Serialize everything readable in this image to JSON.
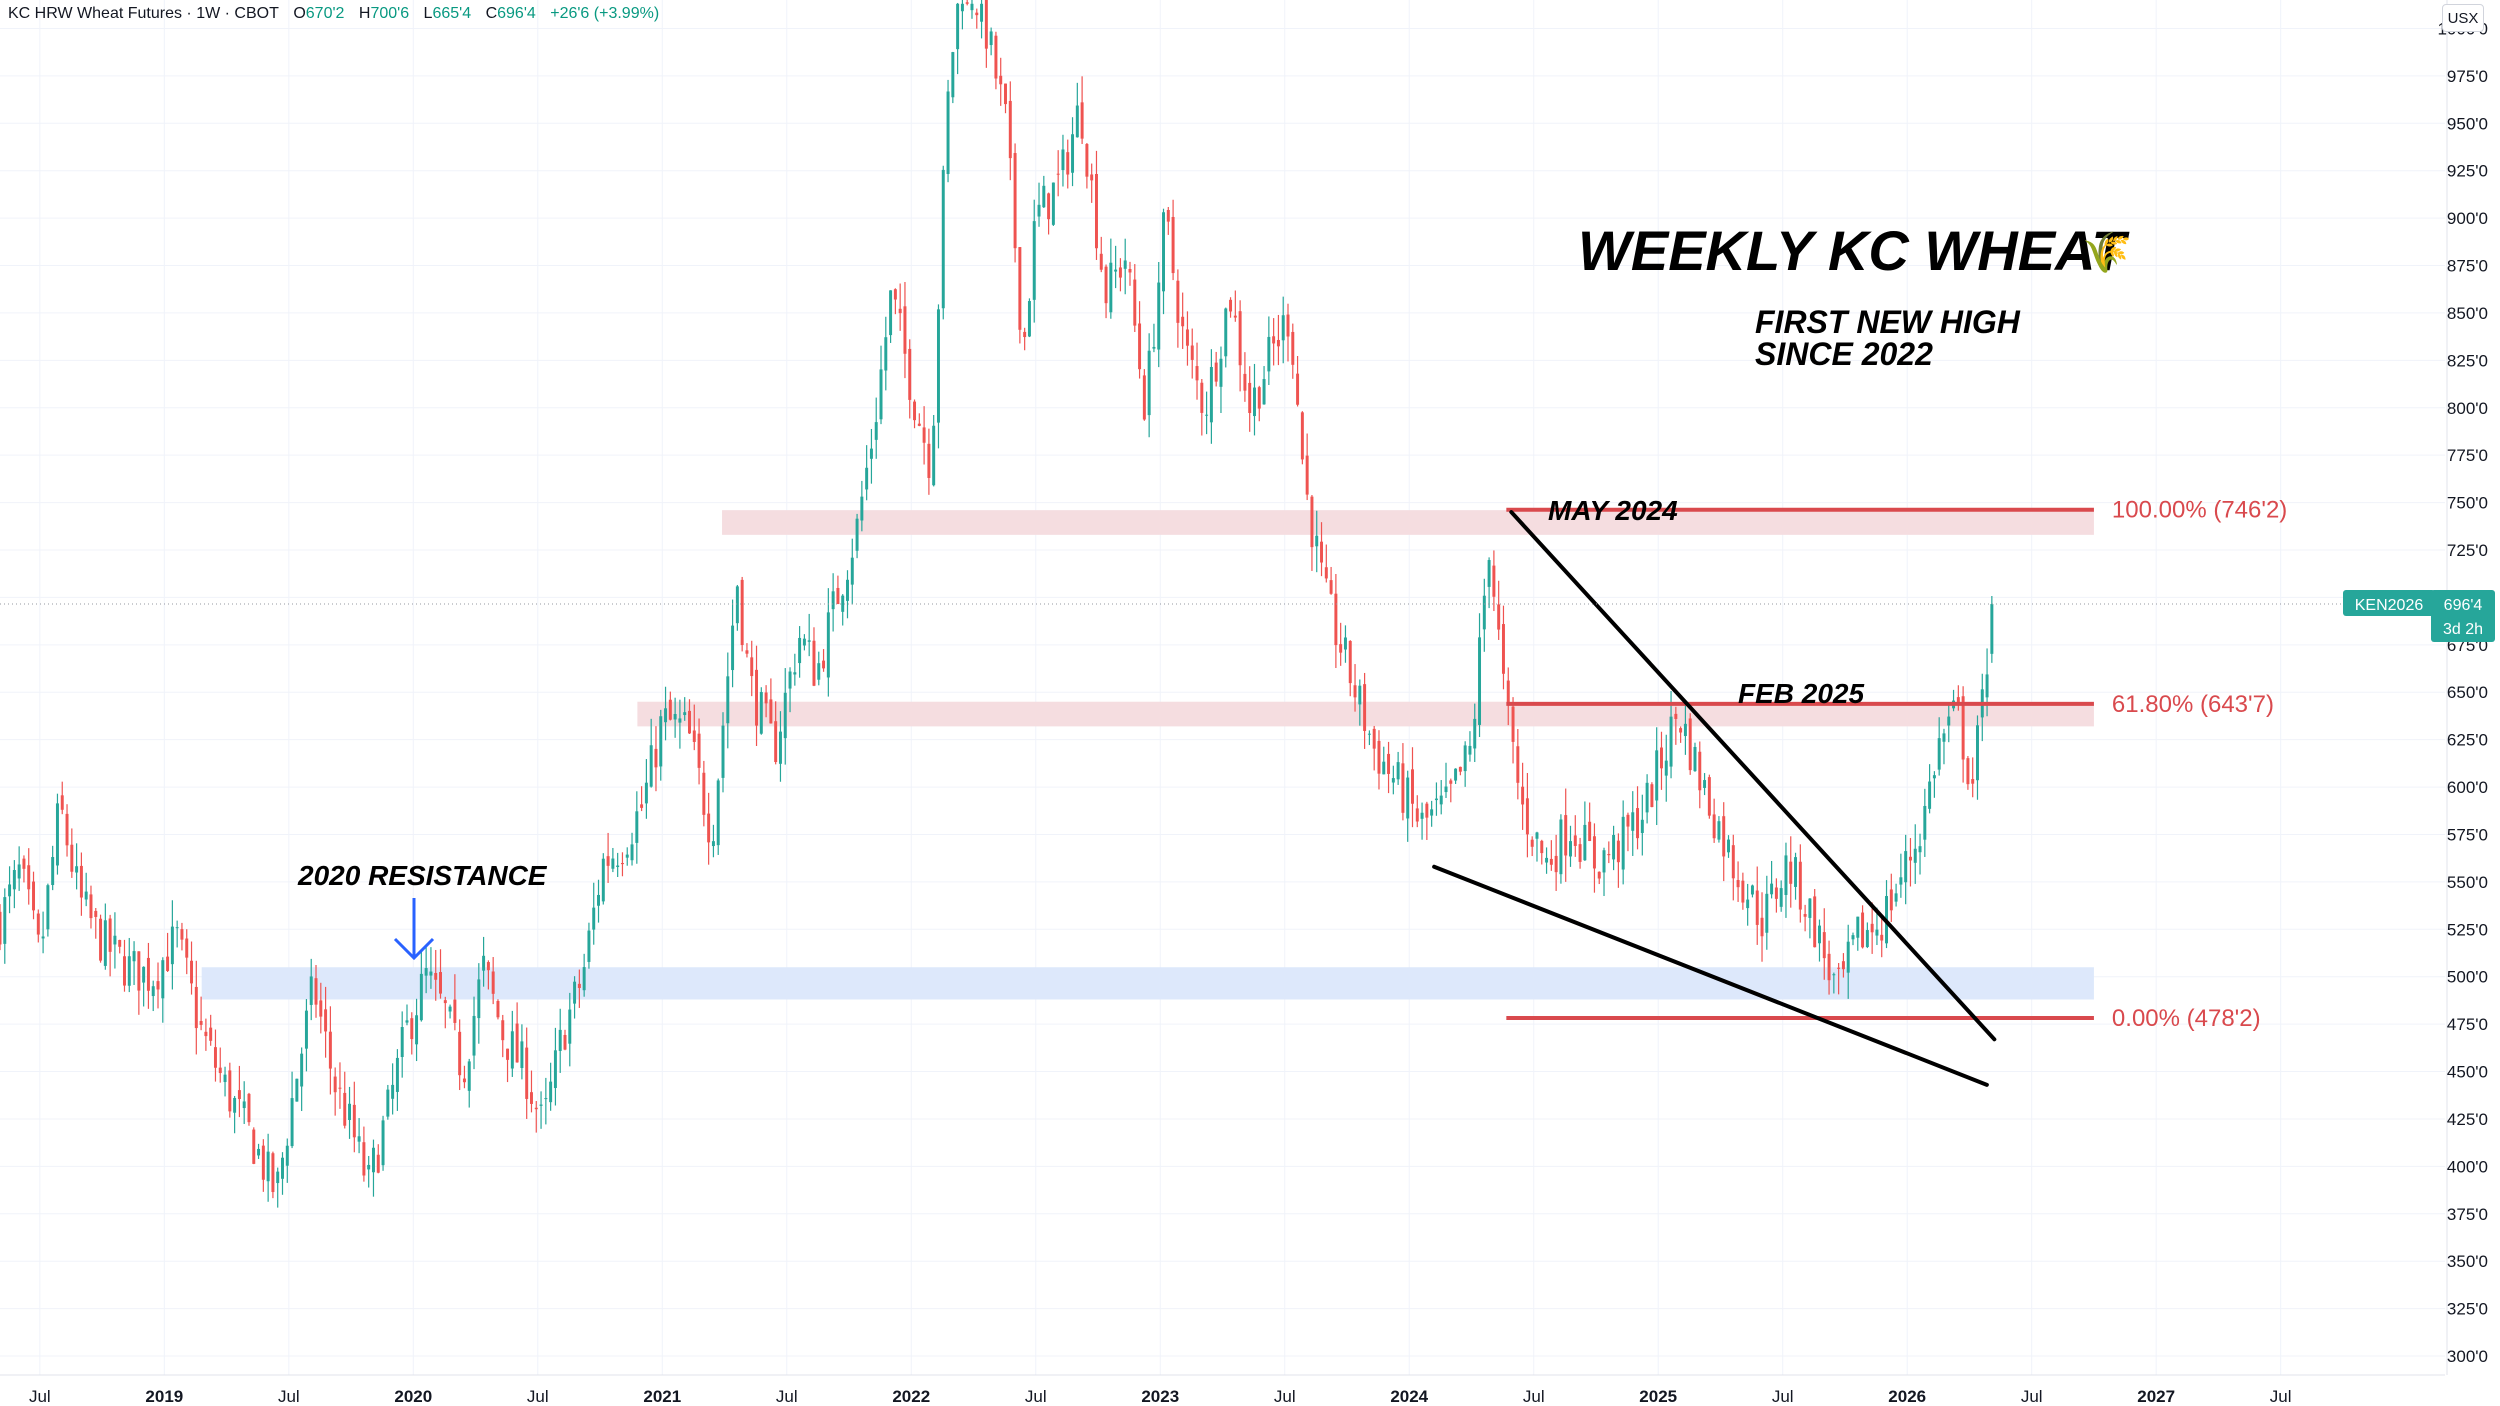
{
  "header": {
    "symbol": "KC HRW Wheat Futures · 1W · CBOT",
    "open_label": "O",
    "open": "670'2",
    "high_label": "H",
    "high": "700'6",
    "low_label": "L",
    "low": "665'4",
    "close_label": "C",
    "close": "696'4",
    "change": "+26'6 (+3.99%)"
  },
  "currency_button": "USX",
  "price_tag": {
    "ticker": "KEN2026",
    "price": "696'4",
    "countdown": "3d 2h"
  },
  "colors": {
    "up": "#26a69a",
    "down": "#ef5350",
    "fib": "#d9494d",
    "zone_red": "#f5dde0",
    "zone_blue": "#dde8fb",
    "arrow": "#2962ff",
    "axis_text": "#131722",
    "grid": "#f0f3fa"
  },
  "chart_data": {
    "type": "candlestick",
    "timeframe": "1W",
    "ylim": [
      290,
      1015
    ],
    "y_ticks": [
      {
        "v": 300,
        "label": "300'0"
      },
      {
        "v": 325,
        "label": "325'0"
      },
      {
        "v": 350,
        "label": "350'0"
      },
      {
        "v": 375,
        "label": "375'0"
      },
      {
        "v": 400,
        "label": "400'0"
      },
      {
        "v": 425,
        "label": "425'0"
      },
      {
        "v": 450,
        "label": "450'0"
      },
      {
        "v": 475,
        "label": "475'0"
      },
      {
        "v": 500,
        "label": "500'0"
      },
      {
        "v": 525,
        "label": "525'0"
      },
      {
        "v": 550,
        "label": "550'0"
      },
      {
        "v": 575,
        "label": "575'0"
      },
      {
        "v": 600,
        "label": "600'0"
      },
      {
        "v": 625,
        "label": "625'0"
      },
      {
        "v": 650,
        "label": "650'0"
      },
      {
        "v": 675,
        "label": "675'0"
      },
      {
        "v": 700,
        "label": "700'0"
      },
      {
        "v": 725,
        "label": "725'0"
      },
      {
        "v": 750,
        "label": "750'0"
      },
      {
        "v": 775,
        "label": "775'0"
      },
      {
        "v": 800,
        "label": "800'0"
      },
      {
        "v": 825,
        "label": "825'0"
      },
      {
        "v": 850,
        "label": "850'0"
      },
      {
        "v": 875,
        "label": "875'0"
      },
      {
        "v": 900,
        "label": "900'0"
      },
      {
        "v": 925,
        "label": "925'0"
      },
      {
        "v": 950,
        "label": "950'0"
      },
      {
        "v": 975,
        "label": "975'0"
      },
      {
        "v": 1000,
        "label": "1000'0"
      }
    ],
    "x_ticks": [
      {
        "t": 2018.5,
        "label": "Jul",
        "bold": false
      },
      {
        "t": 2019,
        "label": "2019",
        "bold": true
      },
      {
        "t": 2019.5,
        "label": "Jul",
        "bold": false
      },
      {
        "t": 2020,
        "label": "2020",
        "bold": true
      },
      {
        "t": 2020.5,
        "label": "Jul",
        "bold": false
      },
      {
        "t": 2021,
        "label": "2021",
        "bold": true
      },
      {
        "t": 2021.5,
        "label": "Jul",
        "bold": false
      },
      {
        "t": 2022,
        "label": "2022",
        "bold": true
      },
      {
        "t": 2022.5,
        "label": "Jul",
        "bold": false
      },
      {
        "t": 2023,
        "label": "2023",
        "bold": true
      },
      {
        "t": 2023.5,
        "label": "Jul",
        "bold": false
      },
      {
        "t": 2024,
        "label": "2024",
        "bold": true
      },
      {
        "t": 2024.5,
        "label": "Jul",
        "bold": false
      },
      {
        "t": 2025,
        "label": "2025",
        "bold": true
      },
      {
        "t": 2025.5,
        "label": "Jul",
        "bold": false
      },
      {
        "t": 2026,
        "label": "2026",
        "bold": true
      },
      {
        "t": 2026.5,
        "label": "Jul",
        "bold": false
      },
      {
        "t": 2027,
        "label": "2027",
        "bold": true
      },
      {
        "t": 2027.5,
        "label": "Jul",
        "bold": false
      }
    ],
    "x_range": [
      2018.34,
      2028.16
    ],
    "price_path": [
      [
        2018.34,
        530
      ],
      [
        2018.42,
        555
      ],
      [
        2018.5,
        510
      ],
      [
        2018.58,
        590
      ],
      [
        2018.66,
        540
      ],
      [
        2018.74,
        520
      ],
      [
        2018.85,
        505
      ],
      [
        2018.95,
        500
      ],
      [
        2019.05,
        520
      ],
      [
        2019.15,
        470
      ],
      [
        2019.25,
        440
      ],
      [
        2019.35,
        415
      ],
      [
        2019.45,
        385
      ],
      [
        2019.52,
        440
      ],
      [
        2019.6,
        495
      ],
      [
        2019.68,
        445
      ],
      [
        2019.75,
        420
      ],
      [
        2019.82,
        390
      ],
      [
        2019.9,
        430
      ],
      [
        2019.97,
        470
      ],
      [
        2020.05,
        500
      ],
      [
        2020.13,
        480
      ],
      [
        2020.2,
        450
      ],
      [
        2020.28,
        505
      ],
      [
        2020.36,
        470
      ],
      [
        2020.45,
        450
      ],
      [
        2020.52,
        420
      ],
      [
        2020.6,
        470
      ],
      [
        2020.68,
        500
      ],
      [
        2020.76,
        560
      ],
      [
        2020.84,
        570
      ],
      [
        2020.92,
        590
      ],
      [
        2021.0,
        635
      ],
      [
        2021.1,
        630
      ],
      [
        2021.2,
        575
      ],
      [
        2021.3,
        710
      ],
      [
        2021.35,
        655
      ],
      [
        2021.45,
        620
      ],
      [
        2021.55,
        680
      ],
      [
        2021.62,
        660
      ],
      [
        2021.7,
        700
      ],
      [
        2021.78,
        735
      ],
      [
        2021.85,
        790
      ],
      [
        2021.92,
        860
      ],
      [
        2022.02,
        800
      ],
      [
        2022.08,
        770
      ],
      [
        2022.14,
        950
      ],
      [
        2022.2,
        1040
      ],
      [
        2022.3,
        1000
      ],
      [
        2022.38,
        950
      ],
      [
        2022.45,
        830
      ],
      [
        2022.5,
        900
      ],
      [
        2022.6,
        920
      ],
      [
        2022.68,
        960
      ],
      [
        2022.78,
        860
      ],
      [
        2022.86,
        880
      ],
      [
        2022.94,
        800
      ],
      [
        2023.02,
        900
      ],
      [
        2023.1,
        830
      ],
      [
        2023.18,
        800
      ],
      [
        2023.28,
        860
      ],
      [
        2023.36,
        800
      ],
      [
        2023.45,
        830
      ],
      [
        2023.52,
        850
      ],
      [
        2023.58,
        760
      ],
      [
        2023.66,
        700
      ],
      [
        2023.76,
        660
      ],
      [
        2023.86,
        620
      ],
      [
        2023.96,
        600
      ],
      [
        2024.05,
        580
      ],
      [
        2024.15,
        590
      ],
      [
        2024.25,
        620
      ],
      [
        2024.32,
        730
      ],
      [
        2024.38,
        650
      ],
      [
        2024.45,
        590
      ],
      [
        2024.55,
        560
      ],
      [
        2024.65,
        580
      ],
      [
        2024.75,
        560
      ],
      [
        2024.85,
        570
      ],
      [
        2024.95,
        590
      ],
      [
        2025.08,
        640
      ],
      [
        2025.18,
        600
      ],
      [
        2025.3,
        560
      ],
      [
        2025.42,
        530
      ],
      [
        2025.52,
        560
      ],
      [
        2025.62,
        530
      ],
      [
        2025.72,
        490
      ],
      [
        2025.8,
        520
      ],
      [
        2025.9,
        530
      ],
      [
        2026.0,
        560
      ],
      [
        2026.06,
        580
      ],
      [
        2026.12,
        620
      ],
      [
        2026.2,
        640
      ],
      [
        2026.26,
        600
      ],
      [
        2026.3,
        640
      ],
      [
        2026.34,
        696
      ]
    ],
    "last_price": 696.5,
    "levels": [
      {
        "name": "fib-100",
        "label": "100.00% (746'2)",
        "price": 746.25,
        "t0": 2024.39,
        "t1": 2026.75
      },
      {
        "name": "fib-618",
        "label": "61.80% (643'7)",
        "price": 643.875,
        "t0": 2024.39,
        "t1": 2026.75
      },
      {
        "name": "fib-0",
        "label": "0.00% (478'2)",
        "price": 478.25,
        "t0": 2024.39,
        "t1": 2026.75
      }
    ],
    "zones": [
      {
        "name": "zone-upper-resistance",
        "p0": 733,
        "p1": 746,
        "t0": 2021.24,
        "t1": 2026.75,
        "color": "#f5dde0"
      },
      {
        "name": "zone-mid-resistance",
        "p0": 632,
        "p1": 645,
        "t0": 2020.9,
        "t1": 2026.75,
        "color": "#f5dde0"
      },
      {
        "name": "zone-2020-resistance",
        "p0": 488,
        "p1": 505,
        "t0": 2019.15,
        "t1": 2026.75,
        "color": "#dde8fb"
      }
    ],
    "trendlines": [
      {
        "name": "downtrend-line",
        "t0": 2024.41,
        "p0": 745,
        "t1": 2026.35,
        "p1": 467
      },
      {
        "name": "lower-wedge-line",
        "t0": 2024.1,
        "p0": 558,
        "t1": 2026.32,
        "p1": 443
      }
    ],
    "annotations": {
      "title": "WEEKLY KC WHEAT",
      "title_emoji": "🌾",
      "subtitle_line1": "FIRST NEW HIGH",
      "subtitle_line2": "SINCE 2022",
      "may_2024": "MAY 2024",
      "feb_2025": "FEB 2025",
      "resistance_2020": "2020 RESISTANCE"
    }
  }
}
